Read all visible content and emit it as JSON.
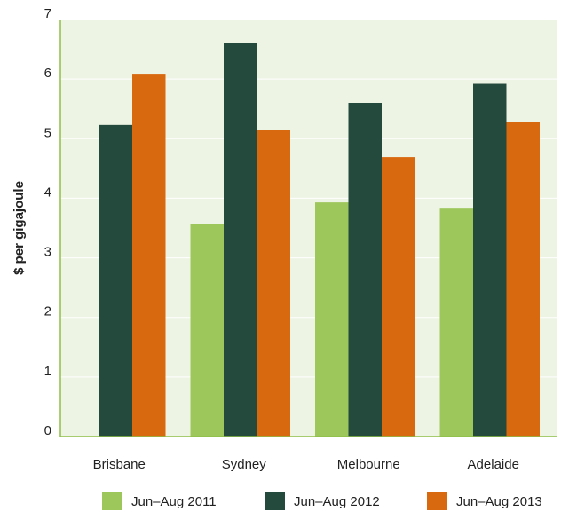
{
  "chart_data": {
    "type": "bar",
    "y_label": "$ per gigajoule",
    "categories": [
      "Brisbane",
      "Sydney",
      "Melbourne",
      "Adelaide"
    ],
    "series": [
      {
        "name": "Jun–Aug 2011",
        "color": "#9dc75a",
        "values": [
          null,
          3.56,
          3.93,
          3.84
        ]
      },
      {
        "name": "Jun–Aug 2012",
        "color": "#244a3d",
        "values": [
          5.23,
          6.6,
          5.6,
          5.92
        ]
      },
      {
        "name": "Jun–Aug 2013",
        "color": "#d9690f",
        "values": [
          6.09,
          5.14,
          4.69,
          5.28
        ]
      }
    ],
    "ylim": [
      0,
      7
    ],
    "yticks": [
      0,
      1,
      2,
      3,
      4,
      5,
      6,
      7
    ],
    "grid": true,
    "legend": "bottom"
  }
}
